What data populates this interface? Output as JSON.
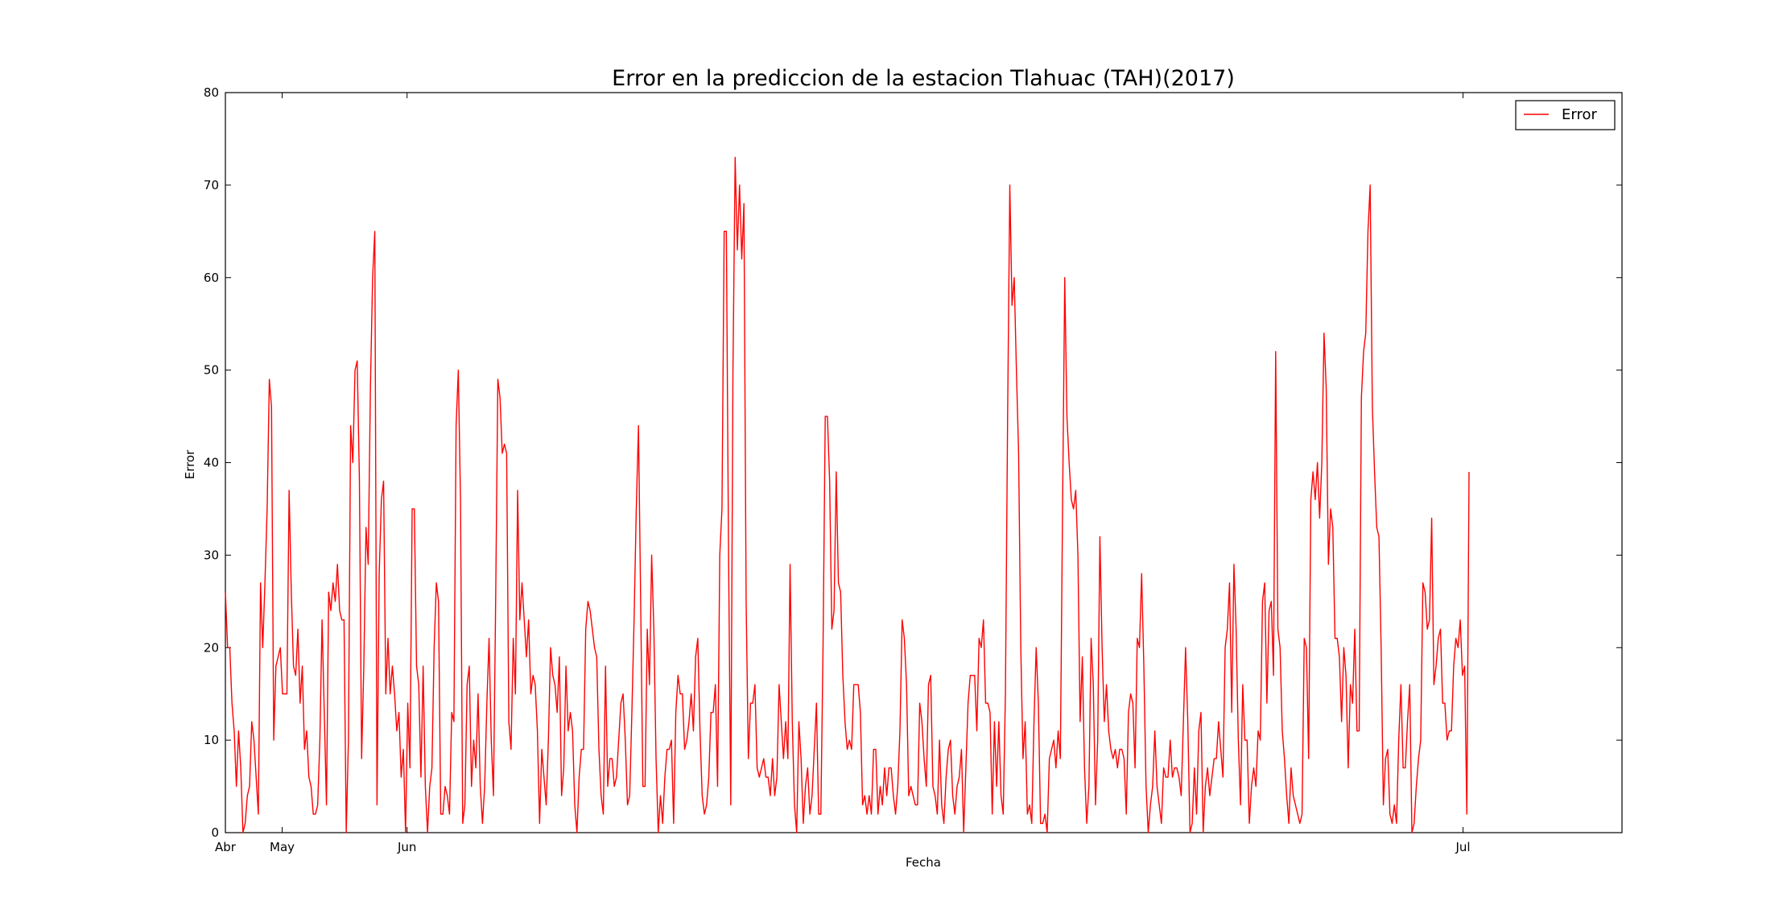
{
  "chart_data": {
    "type": "line",
    "title": "Error en la prediccion de la estacion Tlahuac (TAH)(2017)",
    "xlabel": "Fecha",
    "ylabel": "Error",
    "ylim": [
      0,
      80
    ],
    "yticks": [
      0,
      10,
      20,
      30,
      40,
      50,
      60,
      70,
      80
    ],
    "xlim": [
      "2017-03-31",
      "2017-08-01"
    ],
    "xticks": [
      {
        "label": "Abr",
        "date": "2017-03-31"
      },
      {
        "label": "May",
        "date": "2017-04-05"
      },
      {
        "label": "Jun",
        "date": "2017-04-16"
      },
      {
        "label": "Jul",
        "date": "2017-07-18"
      }
    ],
    "grid": false,
    "legend_position": "top-right",
    "series": [
      {
        "name": "Error",
        "color": "#ff0000",
        "values": [
          26,
          20,
          20,
          14,
          11,
          5,
          11,
          7,
          0,
          1,
          4,
          5,
          12,
          10,
          6,
          2,
          27,
          20,
          27,
          35,
          49,
          46,
          10,
          18,
          19,
          20,
          15,
          15,
          15,
          37,
          26,
          18,
          17,
          22,
          14,
          18,
          9,
          11,
          6,
          5,
          2,
          2,
          3,
          10,
          23,
          13,
          3,
          26,
          24,
          27,
          25,
          29,
          24,
          23,
          23,
          0,
          10,
          44,
          40,
          50,
          51,
          38,
          8,
          18,
          33,
          29,
          48,
          60,
          65,
          3,
          28,
          36,
          38,
          15,
          21,
          15,
          18,
          15,
          11,
          13,
          6,
          9,
          0,
          14,
          7,
          35,
          35,
          18,
          16,
          6,
          18,
          5,
          0,
          5,
          7,
          20,
          27,
          25,
          2,
          2,
          5,
          4,
          2,
          13,
          12,
          44,
          50,
          36,
          1,
          3,
          16,
          18,
          5,
          10,
          7,
          15,
          5,
          1,
          5,
          14,
          21,
          10,
          4,
          25,
          49,
          47,
          41,
          42,
          41,
          12,
          9,
          21,
          15,
          37,
          23,
          27,
          23,
          19,
          23,
          15,
          17,
          16,
          11,
          1,
          9,
          6,
          3,
          10,
          20,
          17,
          16,
          13,
          19,
          4,
          7,
          18,
          11,
          13,
          11,
          3,
          0,
          6,
          9,
          9,
          22,
          25,
          24,
          22,
          20,
          19,
          9,
          4,
          2,
          18,
          5,
          8,
          8,
          5,
          6,
          10,
          14,
          15,
          10,
          3,
          4,
          13,
          23,
          35,
          44,
          25,
          5,
          5,
          22,
          16,
          30,
          22,
          8,
          0,
          4,
          1,
          6,
          9,
          9,
          10,
          1,
          13,
          17,
          15,
          15,
          9,
          10,
          12,
          15,
          11,
          19,
          21,
          11,
          4,
          2,
          3,
          6,
          13,
          13,
          16,
          5,
          30,
          35,
          65,
          65,
          30,
          3,
          50,
          73,
          63,
          70,
          62,
          68,
          25,
          8,
          14,
          14,
          16,
          7,
          6,
          7,
          8,
          6,
          6,
          4,
          8,
          4,
          6,
          16,
          12,
          8,
          12,
          8,
          29,
          12,
          3,
          0,
          12,
          8,
          1,
          5,
          7,
          2,
          4,
          9,
          14,
          2,
          2,
          20,
          45,
          45,
          38,
          22,
          24,
          39,
          27,
          26,
          17,
          12,
          9,
          10,
          9,
          16,
          16,
          16,
          13,
          3,
          4,
          2,
          4,
          2,
          9,
          9,
          2,
          5,
          3,
          7,
          4,
          7,
          7,
          4,
          2,
          5,
          11,
          23,
          21,
          16,
          4,
          5,
          4,
          3,
          3,
          14,
          12,
          8,
          5,
          16,
          17,
          5,
          4,
          2,
          10,
          3,
          1,
          6,
          9,
          10,
          4,
          2,
          5,
          6,
          9,
          0,
          7,
          14,
          17,
          17,
          17,
          11,
          21,
          20,
          23,
          14,
          14,
          13,
          2,
          12,
          5,
          12,
          4,
          2,
          15,
          45,
          70,
          57,
          60,
          50,
          41,
          20,
          8,
          12,
          2,
          3,
          1,
          12,
          20,
          14,
          1,
          1,
          2,
          0,
          8,
          9,
          10,
          7,
          11,
          8,
          35,
          60,
          45,
          40,
          36,
          35,
          37,
          30,
          12,
          19,
          7,
          1,
          5,
          21,
          16,
          3,
          10,
          32,
          20,
          12,
          16,
          11,
          9,
          8,
          9,
          7,
          9,
          9,
          8,
          2,
          13,
          15,
          14,
          7,
          21,
          20,
          28,
          18,
          5,
          0,
          3,
          5,
          11,
          5,
          3,
          1,
          7,
          6,
          6,
          10,
          6,
          7,
          7,
          6,
          4,
          12,
          20,
          12,
          0,
          1,
          7,
          2,
          11,
          13,
          0,
          5,
          7,
          4,
          6,
          8,
          8,
          12,
          9,
          6,
          20,
          22,
          27,
          13,
          29,
          22,
          10,
          3,
          16,
          10,
          10,
          1,
          5,
          7,
          5,
          11,
          10,
          25,
          27,
          14,
          24,
          25,
          17,
          52,
          22,
          20,
          11,
          8,
          4,
          1,
          7,
          4,
          3,
          2,
          1,
          2,
          21,
          20,
          8,
          36,
          39,
          36,
          40,
          34,
          40,
          54,
          48,
          29,
          35,
          33,
          21,
          21,
          19,
          12,
          20,
          17,
          7,
          16,
          14,
          22,
          11,
          11,
          47,
          52,
          54,
          65,
          70,
          46,
          39,
          33,
          32,
          20,
          3,
          8,
          9,
          2,
          1,
          3,
          1,
          10,
          16,
          7,
          7,
          12,
          16,
          0,
          1,
          5,
          8,
          10,
          27,
          26,
          22,
          23,
          34,
          16,
          18,
          21,
          22,
          14,
          14,
          10,
          11,
          11,
          18,
          21,
          20,
          23,
          17,
          18,
          2,
          39
        ]
      }
    ]
  }
}
